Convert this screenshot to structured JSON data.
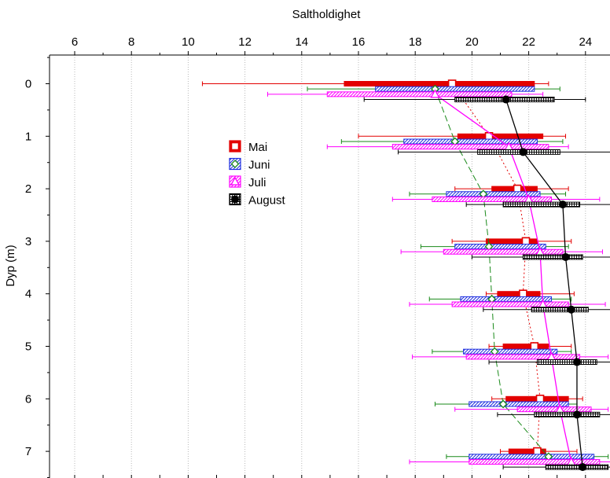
{
  "chart_data": {
    "type": "scatter",
    "title": "",
    "xlabel": "Saltholdighet",
    "ylabel": "Dyp (m)",
    "x_axis_position": "top",
    "xlim": [
      4.9,
      25.0
    ],
    "ylim": [
      -0.48,
      7.38
    ],
    "y_inverted": true,
    "xticks": [
      6,
      8,
      10,
      12,
      14,
      16,
      18,
      20,
      22,
      24
    ],
    "yticks": [
      0,
      1,
      2,
      3,
      4,
      5,
      6,
      7
    ],
    "grid": "vertical dotted",
    "legend_placement": "center-left",
    "series": [
      {
        "name": "Mai",
        "color": "#e30000",
        "marker": "open-square",
        "line": "dotted",
        "box_fill": "solid",
        "offset": 0.0,
        "points": [
          {
            "y": 0,
            "x": 19.3,
            "box": [
              15.5,
              22.2
            ],
            "whisker": [
              10.5,
              22.7
            ]
          },
          {
            "y": 1,
            "x": 20.6,
            "box": [
              19.5,
              22.5
            ],
            "whisker": [
              16.0,
              23.3
            ]
          },
          {
            "y": 2,
            "x": 21.6,
            "box": [
              20.7,
              22.3
            ],
            "whisker": [
              19.4,
              23.4
            ]
          },
          {
            "y": 3,
            "x": 21.9,
            "box": [
              20.5,
              22.3
            ],
            "whisker": [
              19.3,
              23.5
            ]
          },
          {
            "y": 4,
            "x": 21.8,
            "box": [
              20.9,
              22.4
            ],
            "whisker": [
              20.5,
              23.6
            ]
          },
          {
            "y": 5,
            "x": 22.2,
            "box": [
              21.1,
              22.7
            ],
            "whisker": [
              20.6,
              23.5
            ]
          },
          {
            "y": 6,
            "x": 22.4,
            "box": [
              21.2,
              23.4
            ],
            "whisker": [
              20.7,
              23.9
            ]
          },
          {
            "y": 7,
            "x": 22.3,
            "box": [
              21.3,
              22.6
            ],
            "whisker": [
              21.0,
              23.7
            ]
          }
        ]
      },
      {
        "name": "Juni",
        "color": "#1f2fe0",
        "marker": "open-diamond",
        "line": "dashed",
        "line_color": "#1a8a1a",
        "whisker_color": "#1a8a1a",
        "box_fill": "hatch-diagonal",
        "offset": 0.1,
        "points": [
          {
            "y": 0,
            "x": 18.7,
            "box": [
              16.6,
              22.2
            ],
            "whisker": [
              14.2,
              23.1
            ]
          },
          {
            "y": 1,
            "x": 19.4,
            "box": [
              17.6,
              22.3
            ],
            "whisker": [
              15.4,
              23.2
            ]
          },
          {
            "y": 2,
            "x": 20.4,
            "box": [
              19.1,
              22.4
            ],
            "whisker": [
              17.8,
              23.3
            ]
          },
          {
            "y": 3,
            "x": 20.6,
            "box": [
              19.4,
              22.6
            ],
            "whisker": [
              18.2,
              23.4
            ]
          },
          {
            "y": 4,
            "x": 20.7,
            "box": [
              19.6,
              22.8
            ],
            "whisker": [
              18.5,
              23.5
            ]
          },
          {
            "y": 5,
            "x": 20.8,
            "box": [
              19.7,
              23.0
            ],
            "whisker": [
              18.6,
              23.5
            ]
          },
          {
            "y": 6,
            "x": 21.1,
            "box": [
              19.9,
              23.4
            ],
            "whisker": [
              18.7,
              23.7
            ]
          },
          {
            "y": 7,
            "x": 22.7,
            "box": [
              19.9,
              24.3
            ],
            "whisker": [
              19.1,
              24.8
            ]
          }
        ]
      },
      {
        "name": "Juli",
        "color": "#ff00ff",
        "marker": "open-triangle",
        "line": "solid",
        "box_fill": "hatch-diagonal",
        "offset": 0.2,
        "points": [
          {
            "y": 0,
            "x": 18.7,
            "box": [
              14.9,
              21.4
            ],
            "whisker": [
              12.8,
              22.5
            ]
          },
          {
            "y": 1,
            "x": 21.3,
            "box": [
              17.2,
              22.7
            ],
            "whisker": [
              14.9,
              23.4
            ]
          },
          {
            "y": 2,
            "x": 22.0,
            "box": [
              18.6,
              22.8
            ],
            "whisker": [
              17.2,
              24.5
            ]
          },
          {
            "y": 3,
            "x": 22.4,
            "box": [
              19.0,
              23.2
            ],
            "whisker": [
              17.5,
              24.6
            ]
          },
          {
            "y": 4,
            "x": 22.5,
            "box": [
              19.3,
              23.4
            ],
            "whisker": [
              17.8,
              24.7
            ]
          },
          {
            "y": 5,
            "x": 22.8,
            "box": [
              19.8,
              23.8
            ],
            "whisker": [
              17.9,
              24.8
            ]
          },
          {
            "y": 6,
            "x": 23.1,
            "box": [
              21.6,
              24.2
            ],
            "whisker": [
              19.4,
              24.8
            ]
          },
          {
            "y": 7,
            "x": 23.5,
            "box": [
              19.9,
              24.5
            ],
            "whisker": [
              17.8,
              24.9
            ]
          }
        ]
      },
      {
        "name": "August",
        "color": "#000000",
        "marker": "filled-circle",
        "line": "solid",
        "box_fill": "hatch-cross",
        "offset": 0.3,
        "points": [
          {
            "y": 0,
            "x": 21.2,
            "box": [
              19.4,
              22.9
            ],
            "whisker": [
              16.2,
              24.0
            ]
          },
          {
            "y": 1,
            "x": 21.8,
            "box": [
              20.2,
              23.1
            ],
            "whisker": [
              17.4,
              24.9
            ]
          },
          {
            "y": 2,
            "x": 23.2,
            "box": [
              21.1,
              23.8
            ],
            "whisker": [
              19.8,
              25.0
            ]
          },
          {
            "y": 3,
            "x": 23.3,
            "box": [
              21.8,
              23.9
            ],
            "whisker": [
              20.0,
              25.0
            ]
          },
          {
            "y": 4,
            "x": 23.5,
            "box": [
              22.1,
              24.1
            ],
            "whisker": [
              20.4,
              24.9
            ]
          },
          {
            "y": 5,
            "x": 23.7,
            "box": [
              22.3,
              24.4
            ],
            "whisker": [
              20.6,
              25.0
            ]
          },
          {
            "y": 6,
            "x": 23.7,
            "box": [
              22.2,
              24.5
            ],
            "whisker": [
              20.9,
              25.0
            ]
          },
          {
            "y": 7,
            "x": 23.9,
            "box": [
              22.6,
              24.8
            ],
            "whisker": [
              21.1,
              25.0
            ]
          }
        ]
      }
    ]
  }
}
